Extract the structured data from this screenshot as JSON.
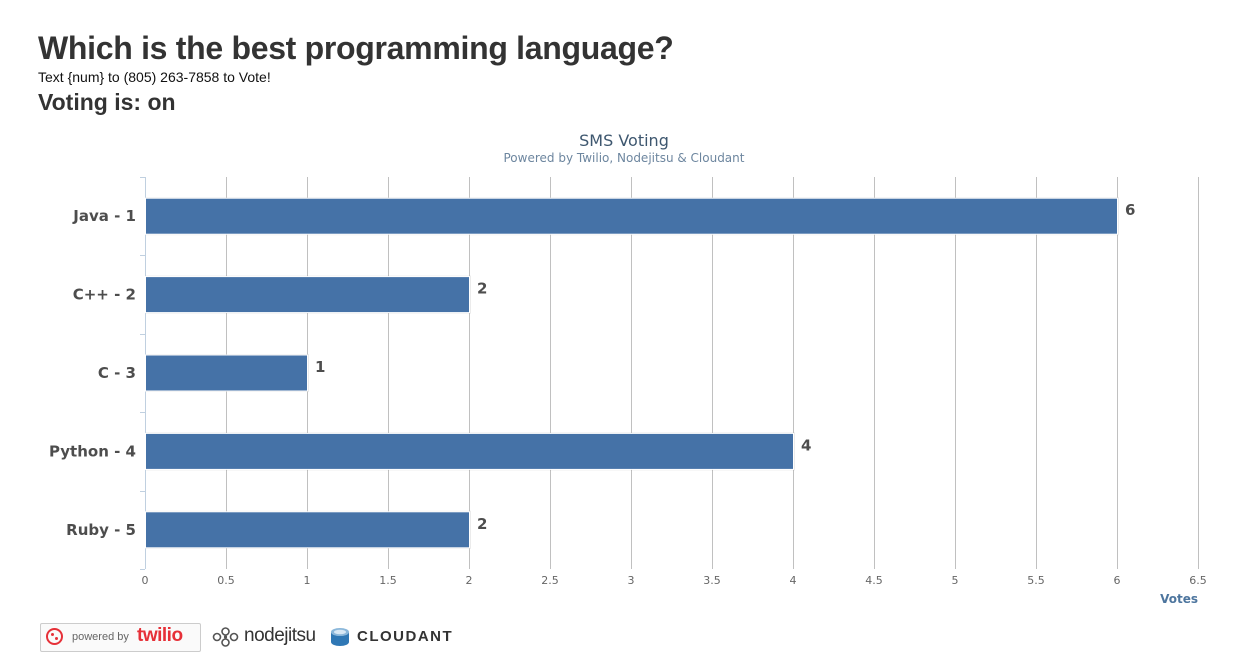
{
  "header": {
    "title": "Which is the best programming language?",
    "instructions": "Text {num} to (805) 263-7858 to Vote!",
    "voting_status": "Voting is: on"
  },
  "chart_data": {
    "type": "bar",
    "orientation": "horizontal",
    "title": "SMS Voting",
    "subtitle": "Powered by Twilio, Nodejitsu & Cloudant",
    "categories": [
      "Java - 1",
      "C++ - 2",
      "C - 3",
      "Python - 4",
      "Ruby - 5"
    ],
    "values": [
      6,
      2,
      1,
      4,
      2
    ],
    "xlabel": "Votes",
    "xlim": [
      0,
      6.5
    ],
    "ticks": [
      "0",
      "0.5",
      "1",
      "1.5",
      "2",
      "2.5",
      "3",
      "3.5",
      "4",
      "4.5",
      "5",
      "5.5",
      "6",
      "6.5"
    ],
    "grid": true,
    "legend": false,
    "bar_color": "#4572a7"
  },
  "footer": {
    "twilio_prefix": "powered by",
    "twilio_name": "twilio",
    "nodejitsu_name": "nodejitsu",
    "cloudant_name": "CLOUDANT",
    "twilio_color": "#e63038"
  }
}
